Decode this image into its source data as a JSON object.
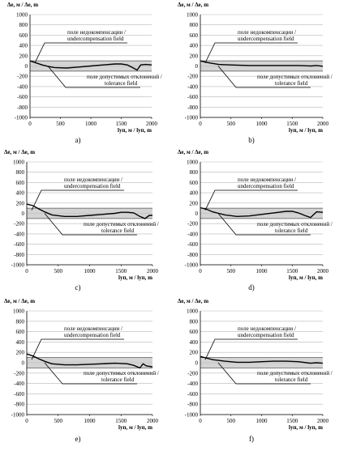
{
  "chart_data": [
    {
      "type": "line",
      "panel_label": "a)",
      "ylabel": "Δe, м / Δe, m",
      "xlabel": "lуп, м / lуп, m",
      "xlim": [
        0,
        2000
      ],
      "ylim": [
        -1000,
        1000
      ],
      "xticks": [
        0,
        500,
        1000,
        1500,
        2000
      ],
      "yticks": [
        1000,
        800,
        600,
        400,
        200,
        0,
        -200,
        -400,
        -600,
        -800,
        -1000
      ],
      "tolerance_band": [
        -100,
        100
      ],
      "annotations": [
        "поле недокомпенсации /",
        "undercompensation field",
        "поле допустимых отклонений /",
        "tolerance field"
      ],
      "series": [
        {
          "x": [
            0,
            100,
            200,
            300,
            400,
            600,
            800,
            1000,
            1200,
            1400,
            1500,
            1600,
            1700,
            1760,
            1820,
            1900,
            2000
          ],
          "y": [
            100,
            60,
            20,
            -10,
            -30,
            -40,
            -20,
            0,
            20,
            40,
            40,
            20,
            -40,
            -80,
            20,
            30,
            20
          ]
        }
      ]
    },
    {
      "type": "line",
      "panel_label": "b)",
      "ylabel": "Δe, м / Δe, m",
      "xlabel": "lуп, м / lуп, m",
      "xlim": [
        0,
        2000
      ],
      "ylim": [
        -1000,
        1000
      ],
      "xticks": [
        0,
        500,
        1000,
        1500,
        2000
      ],
      "yticks": [
        1000,
        800,
        600,
        400,
        200,
        0,
        -200,
        -400,
        -600,
        -800,
        -1000
      ],
      "tolerance_band": [
        -100,
        100
      ],
      "annotations": [
        "поле недокомпенсации /",
        "undercompensation field",
        "поле допустимых отклонений /",
        "tolerance field"
      ],
      "series": [
        {
          "x": [
            0,
            100,
            200,
            300,
            500,
            800,
            1000,
            1200,
            1400,
            1600,
            1800,
            1900,
            2000
          ],
          "y": [
            100,
            70,
            50,
            30,
            20,
            10,
            10,
            10,
            10,
            10,
            0,
            10,
            -5
          ]
        }
      ]
    },
    {
      "type": "line",
      "panel_label": "c)",
      "ylabel": "Δe, м / Δe, m",
      "xlabel": "lуп, м / lуп, m",
      "xlim": [
        0,
        2000
      ],
      "ylim": [
        -1000,
        1000
      ],
      "xticks": [
        0,
        500,
        1000,
        1500,
        2000
      ],
      "yticks": [
        1000,
        800,
        600,
        400,
        200,
        0,
        -200,
        -400,
        -600,
        -800,
        -1000
      ],
      "tolerance_band": [
        -100,
        100
      ],
      "annotations": [
        "поле недокомпенсации /",
        "undercompensation field",
        "поле допустимых отклонений /",
        "tolerance field"
      ],
      "series": [
        {
          "x": [
            0,
            100,
            200,
            300,
            400,
            600,
            800,
            1000,
            1200,
            1400,
            1500,
            1600,
            1700,
            1800,
            1880,
            1950,
            2000
          ],
          "y": [
            180,
            150,
            80,
            20,
            -30,
            -60,
            -60,
            -40,
            -20,
            0,
            20,
            20,
            10,
            -60,
            -100,
            -40,
            -40
          ]
        }
      ]
    },
    {
      "type": "line",
      "panel_label": "d)",
      "ylabel": "Δe, м / Δe, m",
      "xlabel": "lуп, м / lуп, m",
      "xlim": [
        0,
        2000
      ],
      "ylim": [
        -1000,
        1000
      ],
      "xticks": [
        0,
        500,
        1000,
        1500,
        2000
      ],
      "yticks": [
        1000,
        800,
        600,
        400,
        200,
        0,
        -200,
        -400,
        -600,
        -800,
        -1000
      ],
      "tolerance_band": [
        -100,
        100
      ],
      "annotations": [
        "поле недокомпенсации /",
        "undercompensation field",
        "поле допустимых отклонений /",
        "tolerance field"
      ],
      "series": [
        {
          "x": [
            0,
            100,
            200,
            300,
            400,
            600,
            800,
            1000,
            1200,
            1400,
            1500,
            1600,
            1700,
            1800,
            1900,
            2000
          ],
          "y": [
            110,
            80,
            30,
            0,
            -30,
            -60,
            -50,
            -20,
            10,
            40,
            40,
            10,
            -40,
            -80,
            30,
            20
          ]
        }
      ]
    },
    {
      "type": "line",
      "panel_label": "e)",
      "ylabel": "Δe, м / Δe, m",
      "xlabel": "lуп, м / lуп, m",
      "xlim": [
        0,
        2000
      ],
      "ylim": [
        -1000,
        1000
      ],
      "xticks": [
        0,
        500,
        1000,
        1500,
        2000
      ],
      "yticks": [
        1000,
        800,
        600,
        400,
        200,
        0,
        -200,
        -400,
        -600,
        -800,
        -1000
      ],
      "tolerance_band": [
        -100,
        100
      ],
      "annotations": [
        "поле недокомпенсации /",
        "undercompensation field",
        "поле допустимых отклонений /",
        "tolerance field"
      ],
      "series": [
        {
          "x": [
            0,
            100,
            200,
            300,
            400,
            600,
            800,
            1000,
            1200,
            1400,
            1600,
            1700,
            1800,
            1850,
            1900,
            2000
          ],
          "y": [
            170,
            130,
            70,
            20,
            -20,
            -40,
            -40,
            -30,
            -20,
            -10,
            -20,
            -50,
            -100,
            -20,
            -60,
            -80
          ]
        }
      ]
    },
    {
      "type": "line",
      "panel_label": "f)",
      "ylabel": "Δe, м / Δe, m",
      "xlabel": "lуп, м / lуп, m",
      "xlim": [
        0,
        2000
      ],
      "ylim": [
        -1000,
        1000
      ],
      "xticks": [
        0,
        500,
        1000,
        1500,
        2000
      ],
      "yticks": [
        1000,
        800,
        600,
        400,
        200,
        0,
        -200,
        -400,
        -600,
        -800,
        -1000
      ],
      "tolerance_band": [
        -100,
        100
      ],
      "annotations": [
        "поле недокомпенсации /",
        "undercompensation field",
        "поле допустимых отклонений /",
        "tolerance field"
      ],
      "series": [
        {
          "x": [
            0,
            100,
            200,
            400,
            600,
            800,
            1000,
            1200,
            1400,
            1600,
            1800,
            1900,
            2000
          ],
          "y": [
            120,
            90,
            60,
            30,
            10,
            10,
            20,
            30,
            30,
            20,
            -10,
            0,
            -10
          ]
        }
      ]
    }
  ]
}
